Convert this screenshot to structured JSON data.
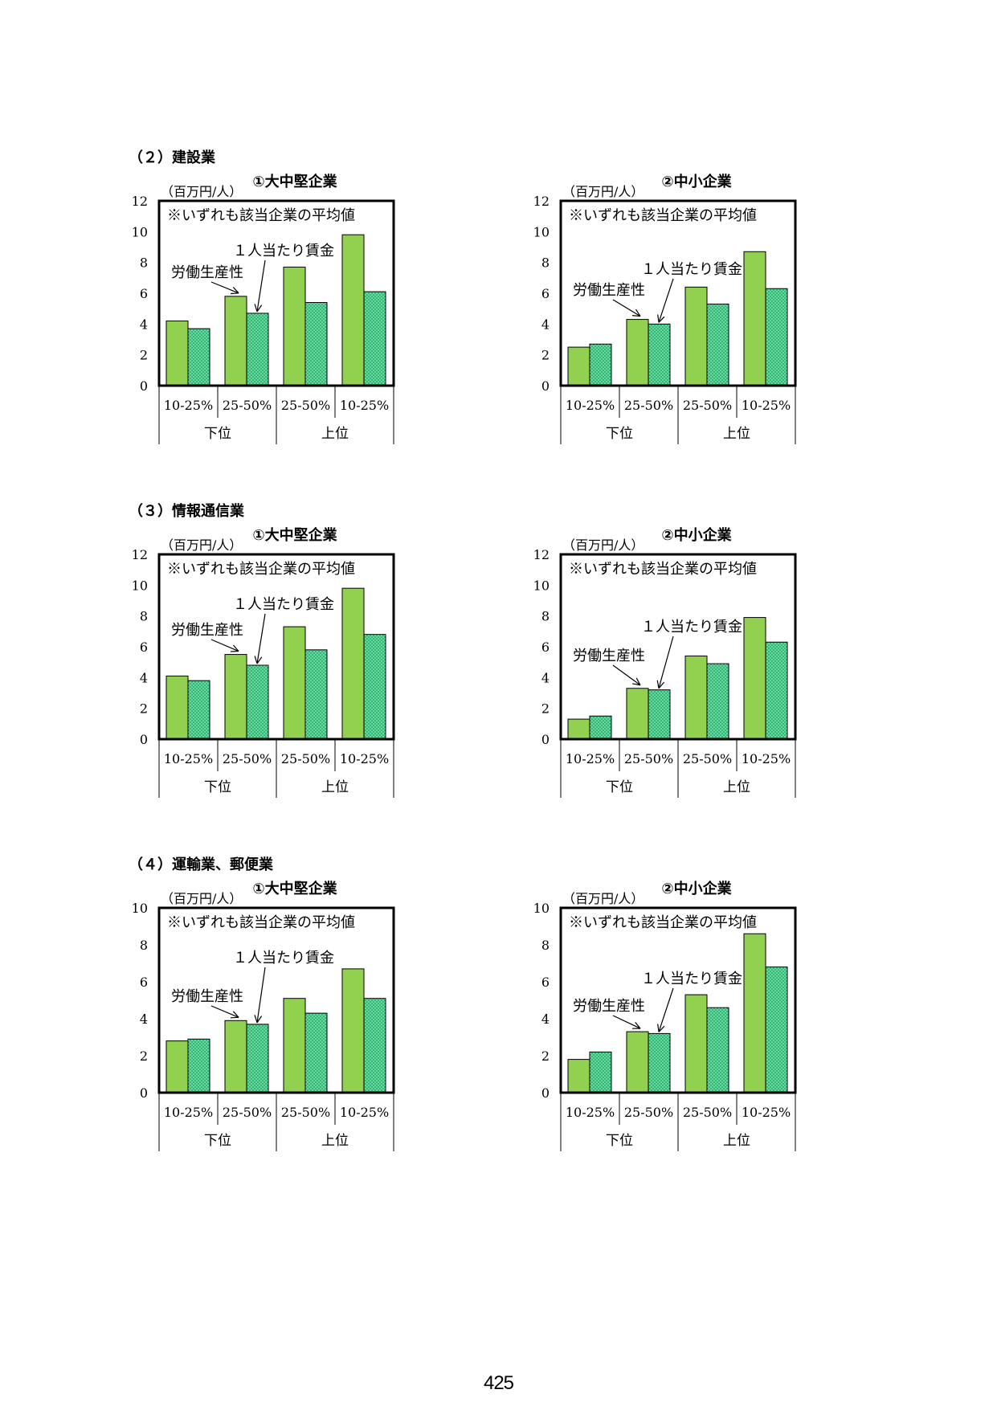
{
  "sections": [
    {
      "label": "（２）建設業"
    },
    {
      "label": "（３）情報通信業"
    },
    {
      "label": "（４）運輸業、郵便業"
    }
  ],
  "common": {
    "unit": "（百万円/人）",
    "note": "※いずれも該当企業の平均値",
    "label_productivity": "労働生産性",
    "label_wage": "１人当たり賃金",
    "group_lower": "下位",
    "group_upper": "上位"
  },
  "colors": {
    "productivity": "#92d050",
    "wage": "#2dba73",
    "wage_dot": "#d6f5e6"
  },
  "page_number": "425",
  "chart_data": [
    {
      "title": "①大中堅企業",
      "type": "bar",
      "categories": [
        "10-25%",
        "25-50%",
        "25-50%",
        "10-25%"
      ],
      "groups": [
        "下位",
        "上位"
      ],
      "ylim": [
        0,
        12
      ],
      "yticks": [
        0,
        2,
        4,
        6,
        8,
        10,
        12
      ],
      "series": [
        {
          "name": "労働生産性",
          "values": [
            4.2,
            5.8,
            7.7,
            9.8
          ]
        },
        {
          "name": "１人当たり賃金",
          "values": [
            3.7,
            4.7,
            5.4,
            6.1
          ]
        }
      ]
    },
    {
      "title": "②中小企業",
      "type": "bar",
      "categories": [
        "10-25%",
        "25-50%",
        "25-50%",
        "10-25%"
      ],
      "groups": [
        "下位",
        "上位"
      ],
      "ylim": [
        0,
        12
      ],
      "yticks": [
        0,
        2,
        4,
        6,
        8,
        10,
        12
      ],
      "series": [
        {
          "name": "労働生産性",
          "values": [
            2.5,
            4.3,
            6.4,
            8.7
          ]
        },
        {
          "name": "１人当たり賃金",
          "values": [
            2.7,
            4.0,
            5.3,
            6.3
          ]
        }
      ]
    },
    {
      "title": "①大中堅企業",
      "type": "bar",
      "categories": [
        "10-25%",
        "25-50%",
        "25-50%",
        "10-25%"
      ],
      "groups": [
        "下位",
        "上位"
      ],
      "ylim": [
        0,
        12
      ],
      "yticks": [
        0,
        2,
        4,
        6,
        8,
        10,
        12
      ],
      "series": [
        {
          "name": "労働生産性",
          "values": [
            4.1,
            5.5,
            7.3,
            9.8
          ]
        },
        {
          "name": "１人当たり賃金",
          "values": [
            3.8,
            4.8,
            5.8,
            6.8
          ]
        }
      ]
    },
    {
      "title": "②中小企業",
      "type": "bar",
      "categories": [
        "10-25%",
        "25-50%",
        "25-50%",
        "10-25%"
      ],
      "groups": [
        "下位",
        "上位"
      ],
      "ylim": [
        0,
        12
      ],
      "yticks": [
        0,
        2,
        4,
        6,
        8,
        10,
        12
      ],
      "series": [
        {
          "name": "労働生産性",
          "values": [
            1.3,
            3.3,
            5.4,
            7.9
          ]
        },
        {
          "name": "１人当たり賃金",
          "values": [
            1.5,
            3.2,
            4.9,
            6.3
          ]
        }
      ]
    },
    {
      "title": "①大中堅企業",
      "type": "bar",
      "categories": [
        "10-25%",
        "25-50%",
        "25-50%",
        "10-25%"
      ],
      "groups": [
        "下位",
        "上位"
      ],
      "ylim": [
        0,
        10
      ],
      "yticks": [
        0,
        2,
        4,
        6,
        8,
        10
      ],
      "series": [
        {
          "name": "労働生産性",
          "values": [
            2.8,
            3.9,
            5.1,
            6.7
          ]
        },
        {
          "name": "１人当たり賃金",
          "values": [
            2.9,
            3.7,
            4.3,
            5.1
          ]
        }
      ]
    },
    {
      "title": "②中小企業",
      "type": "bar",
      "categories": [
        "10-25%",
        "25-50%",
        "25-50%",
        "10-25%"
      ],
      "groups": [
        "下位",
        "上位"
      ],
      "ylim": [
        0,
        10
      ],
      "yticks": [
        0,
        2,
        4,
        6,
        8,
        10
      ],
      "series": [
        {
          "name": "労働生産性",
          "values": [
            1.8,
            3.3,
            5.3,
            8.6
          ]
        },
        {
          "name": "１人当たり賃金",
          "values": [
            2.2,
            3.2,
            4.6,
            6.8
          ]
        }
      ]
    }
  ]
}
